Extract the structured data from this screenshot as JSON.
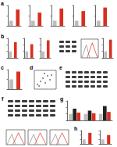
{
  "chart_data": [
    {
      "type": "bar",
      "title": "a",
      "categories": [
        null,
        null
      ],
      "values": [
        1,
        3.2
      ],
      "colors": [
        "#bdbdbd",
        "#d7301f"
      ],
      "ylim": [
        0,
        4
      ],
      "yticks": [
        0,
        2,
        4
      ],
      "grid": false,
      "tick_labels": false
    },
    {
      "type": "bar",
      "categories": [
        null,
        null
      ],
      "values": [
        1,
        2.6
      ],
      "colors": [
        "#bdbdbd",
        "#d7301f"
      ],
      "ylim": [
        0,
        4
      ],
      "yticks": [
        0,
        2,
        4
      ],
      "grid": false,
      "tick_labels": false
    },
    {
      "type": "bar",
      "categories": [
        null,
        null
      ],
      "values": [
        1,
        3.4
      ],
      "colors": [
        "#bdbdbd",
        "#d7301f"
      ],
      "ylim": [
        0,
        4
      ],
      "yticks": [
        0,
        2,
        4
      ],
      "grid": false,
      "tick_labels": false
    },
    {
      "type": "bar",
      "categories": [
        null,
        null
      ],
      "values": [
        1,
        2.9
      ],
      "colors": [
        "#bdbdbd",
        "#d7301f"
      ],
      "ylim": [
        0,
        4
      ],
      "yticks": [
        0,
        2,
        4
      ],
      "grid": false,
      "tick_labels": false
    },
    {
      "type": "bar",
      "categories": [
        null,
        null
      ],
      "values": [
        1,
        3.6
      ],
      "colors": [
        "#bdbdbd",
        "#d7301f"
      ],
      "ylim": [
        0,
        4
      ],
      "yticks": [
        0,
        2,
        4
      ],
      "grid": false,
      "tick_labels": false
    },
    {
      "type": "bar",
      "title": "b",
      "categories": [
        null,
        null
      ],
      "values": [
        1,
        2.4
      ],
      "colors": [
        "#bdbdbd",
        "#d7301f"
      ],
      "ylim": [
        0,
        3
      ],
      "yticks": [
        0,
        1,
        2,
        3
      ],
      "grid": false,
      "tick_labels": false
    },
    {
      "type": "bar",
      "categories": [
        null,
        null
      ],
      "values": [
        1,
        2.1
      ],
      "colors": [
        "#bdbdbd",
        "#d7301f"
      ],
      "ylim": [
        0,
        3
      ],
      "yticks": [
        0,
        1,
        2,
        3
      ],
      "grid": false,
      "tick_labels": false
    },
    {
      "type": "bar",
      "categories": [
        null,
        null
      ],
      "values": [
        1,
        2.7
      ],
      "colors": [
        "#bdbdbd",
        "#d7301f"
      ],
      "ylim": [
        0,
        3
      ],
      "yticks": [
        0,
        1,
        2,
        3
      ],
      "grid": false,
      "tick_labels": false
    },
    {
      "type": "bar",
      "categories": [
        null,
        null
      ],
      "values": [
        1,
        2.8
      ],
      "colors": [
        "#bdbdbd",
        "#d7301f"
      ],
      "ylim": [
        0,
        3
      ],
      "yticks": [
        0,
        1,
        2,
        3
      ],
      "grid": false,
      "tick_labels": false
    },
    {
      "type": "bar",
      "title": "c",
      "categories": [
        null,
        null
      ],
      "values": [
        1,
        1.8
      ],
      "colors": [
        "#bdbdbd",
        "#d7301f"
      ],
      "ylim": [
        0,
        2
      ],
      "yticks": [
        0,
        1,
        2
      ],
      "grid": false,
      "tick_labels": false
    },
    {
      "type": "bar",
      "title": "g",
      "categories": [
        null,
        null,
        null
      ],
      "series": [
        {
          "color": "#bdbdbd",
          "values": [
            1,
            1,
            1
          ]
        },
        {
          "color": "#222222",
          "values": [
            1.8,
            1.5,
            2.2
          ]
        },
        {
          "color": "#d7301f",
          "values": [
            1.2,
            1.1,
            1.3
          ]
        }
      ],
      "ylim": [
        0,
        3
      ],
      "yticks": [
        0,
        1,
        2,
        3
      ],
      "grid": false,
      "tick_labels": false
    },
    {
      "type": "bar",
      "title": "h",
      "categories": [
        null,
        null
      ],
      "values": [
        1,
        2.5
      ],
      "colors": [
        "#bdbdbd",
        "#d7301f"
      ],
      "ylim": [
        0,
        3
      ],
      "yticks": [
        0,
        1,
        2,
        3
      ],
      "grid": false,
      "tick_labels": false
    },
    {
      "type": "bar",
      "categories": [
        null,
        null
      ],
      "values": [
        1,
        2
      ],
      "colors": [
        "#bdbdbd",
        "#d7301f"
      ],
      "ylim": [
        0,
        3
      ],
      "yticks": [
        0,
        1,
        2,
        3
      ],
      "grid": false,
      "tick_labels": false
    }
  ],
  "panel_labels": [
    "d",
    "e",
    "f"
  ]
}
